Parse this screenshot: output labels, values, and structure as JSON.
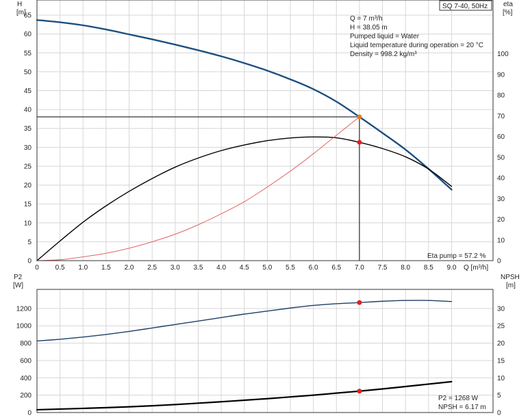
{
  "title_box": "SQ 7-40, 50Hz",
  "top_chart": {
    "left_axis": {
      "name": "H",
      "unit": "[m]",
      "range": [
        0,
        69
      ],
      "ticks": [
        0,
        5,
        10,
        15,
        20,
        25,
        30,
        35,
        40,
        45,
        50,
        55,
        60,
        65
      ]
    },
    "right_axis": {
      "name": "eta",
      "unit": "[%]",
      "range": [
        0,
        126
      ],
      "ticks": [
        0,
        10,
        20,
        30,
        40,
        50,
        60,
        70,
        80,
        90,
        100
      ]
    },
    "x_axis": {
      "range": [
        0,
        9.9
      ],
      "ticks": [
        0,
        0.5,
        1.0,
        1.5,
        2.0,
        2.5,
        3.0,
        3.5,
        4.0,
        4.5,
        5.0,
        5.5,
        6.0,
        6.5,
        7.0,
        7.5,
        8.0,
        8.5,
        9.0
      ],
      "tick_labels": [
        "0",
        "0.5",
        "1.0",
        "1.5",
        "2.0",
        "2.5",
        "3.0",
        "3.5",
        "4.0",
        "4.5",
        "5.0",
        "5.5",
        "6.0",
        "6.5",
        "7.0",
        "7.5",
        "8.0",
        "8.5",
        "9.0"
      ],
      "label": "Q [m³/h]"
    },
    "info_lines": [
      "Q = 7 m³/h",
      "H = 38.05 m",
      "Pumped liquid = Water",
      "Liquid temperature during operation = 20 °C",
      "Density = 998.2 kg/m³"
    ],
    "eta_label": "Eta pump = 57.2 %"
  },
  "bottom_chart": {
    "left_axis": {
      "name": "P2",
      "unit": "[W]",
      "range": [
        0,
        1420
      ],
      "ticks": [
        0,
        200,
        400,
        600,
        800,
        1000,
        1200
      ]
    },
    "right_axis": {
      "name": "NPSH",
      "unit": "[m]",
      "range": [
        0,
        35.5
      ],
      "ticks": [
        0,
        5,
        10,
        15,
        20,
        25,
        30
      ]
    },
    "labels": [
      "P2 = 1268 W",
      "NPSH = 6.17 m"
    ]
  },
  "chart_data": [
    {
      "type": "line",
      "x_label": "Q [m³/h]",
      "y_label": "H [m]",
      "y2_label": "eta [%]",
      "grid": true,
      "series": [
        {
          "axis": "left",
          "color": "#1d4f80",
          "x": [
            0,
            0.5,
            1.0,
            1.5,
            2.0,
            2.5,
            3.0,
            3.5,
            4.0,
            4.5,
            5.0,
            5.5,
            6.0,
            6.5,
            7.0,
            7.5,
            8.0,
            8.5,
            9.0
          ],
          "y": [
            63.7,
            63.1,
            62.3,
            61.2,
            59.9,
            58.6,
            57.2,
            55.7,
            54.1,
            52.3,
            50.3,
            48.0,
            45.4,
            42.1,
            38.05,
            33.8,
            29.4,
            24.3,
            18.8
          ]
        },
        {
          "axis": "right",
          "color": "#000000",
          "x": [
            0,
            0.5,
            1.0,
            1.5,
            2.0,
            2.5,
            3.0,
            3.5,
            4.0,
            4.5,
            5.0,
            5.5,
            6.0,
            6.5,
            7.0,
            7.5,
            8.0,
            8.5,
            9.0
          ],
          "y": [
            0,
            9.5,
            18.6,
            26.5,
            33.5,
            39.7,
            45.2,
            49.6,
            53.2,
            55.9,
            58.0,
            59.3,
            59.8,
            59.4,
            57.2,
            54.2,
            50.2,
            44.3,
            35.9
          ]
        },
        {
          "axis": "left",
          "color": "#e05050",
          "x": [
            0,
            0.5,
            1.0,
            1.5,
            2.0,
            2.5,
            3.0,
            3.5,
            4.0,
            4.5,
            5.0,
            5.5,
            6.0,
            6.5,
            7.0
          ],
          "y": [
            0,
            0.25,
            1.0,
            1.95,
            3.3,
            5.0,
            7.0,
            9.5,
            12.4,
            15.6,
            19.5,
            23.7,
            28.3,
            33.2,
            38.05
          ]
        }
      ],
      "points": [
        {
          "x": 7.0,
          "y": 38.05,
          "axis": "left",
          "color": "#e07a2a"
        },
        {
          "x": 7.0,
          "y": 57.2,
          "axis": "right",
          "color": "#e02020"
        }
      ]
    },
    {
      "type": "line",
      "y_label": "P2 [W]",
      "y2_label": "NPSH [m]",
      "grid": true,
      "series": [
        {
          "axis": "left",
          "color": "#1d3f66",
          "x": [
            0,
            0.5,
            1.0,
            1.5,
            2.0,
            2.5,
            3.0,
            3.5,
            4.0,
            4.5,
            5.0,
            5.5,
            6.0,
            6.5,
            7.0,
            7.5,
            8.0,
            8.5,
            9.0
          ],
          "y": [
            825,
            845,
            870,
            900,
            935,
            975,
            1015,
            1055,
            1095,
            1135,
            1170,
            1205,
            1235,
            1255,
            1268,
            1283,
            1292,
            1292,
            1280
          ]
        },
        {
          "axis": "right",
          "color": "#000000",
          "x": [
            0,
            0.5,
            1.0,
            1.5,
            2.0,
            2.5,
            3.0,
            3.5,
            4.0,
            4.5,
            5.0,
            5.5,
            6.0,
            6.5,
            7.0,
            7.5,
            8.0,
            8.5,
            9.0
          ],
          "y": [
            0.8,
            1.0,
            1.2,
            1.4,
            1.65,
            1.95,
            2.3,
            2.7,
            3.1,
            3.55,
            4.0,
            4.5,
            5.0,
            5.6,
            6.17,
            6.8,
            7.5,
            8.2,
            8.9
          ]
        }
      ],
      "points": [
        {
          "x": 7.0,
          "y": 1268,
          "axis": "left",
          "color": "#e02020"
        },
        {
          "x": 7.0,
          "y": 6.17,
          "axis": "right",
          "color": "#e02020"
        }
      ]
    }
  ]
}
